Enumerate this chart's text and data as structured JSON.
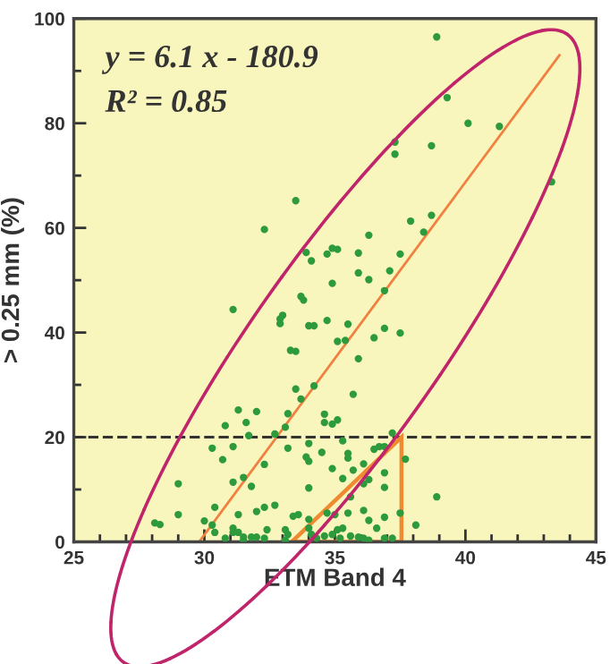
{
  "chart_data": {
    "type": "scatter",
    "xlabel": "ETM Band 4",
    "ylabel": "> 0.25 mm (%)",
    "annotations": [
      "y = 6.1 x - 180.9",
      "R² = 0.85"
    ],
    "xlim": [
      25,
      45
    ],
    "xticks": [
      25,
      30,
      35,
      40,
      45
    ],
    "ylim": [
      0,
      100
    ],
    "yticks": [
      0,
      20,
      40,
      60,
      80,
      100
    ],
    "grid": false,
    "legend": false,
    "ref_lines": [
      {
        "axis": "y",
        "value": 20,
        "label": null,
        "color": "#333333",
        "line_style": "dashed"
      }
    ],
    "series": [
      {
        "type": "scatter",
        "marker": "circle",
        "color": "#2e9a3e",
        "x": [
          38.9,
          39.3,
          40.1,
          41.3,
          37.3,
          37.3,
          38.7,
          43.3,
          33.5,
          32.3,
          37.9,
          38.7,
          38.4,
          36.3,
          33.9,
          34.7,
          34.9,
          35.1,
          35.9,
          34.1,
          37.5,
          35.9,
          37.1,
          36.3,
          34.9,
          36.9,
          33.7,
          33.8,
          31.1,
          33.0,
          32.9,
          32.9,
          34.0,
          34.2,
          34.7,
          35.5,
          36.9,
          33.3,
          33.5,
          35.1,
          35.4,
          35.9,
          36.5,
          37.5,
          33.5,
          34.2,
          33.7,
          35.7,
          31.3,
          32.0,
          33.2,
          34.6,
          34.6,
          34.9,
          35.1,
          30.8,
          31.6,
          32.7,
          33.1,
          30.3,
          31.1,
          31.7,
          33.2,
          34.0,
          35.3,
          30.7,
          32.3,
          33.9,
          34.0,
          34.5,
          35.5,
          35.5,
          36.1,
          36.5,
          36.7,
          36.9,
          37.7,
          37.2,
          29.0,
          31.1,
          31.5,
          31.8,
          34.0,
          34.9,
          35.3,
          35.7,
          36.3,
          36.9,
          36.9,
          36.1,
          35.6,
          28.1,
          28.3,
          29.0,
          30.0,
          30.4,
          31.3,
          32.0,
          32.7,
          32.3,
          33.4,
          33.6,
          34.0,
          34.7,
          35.0,
          35.5,
          36.1,
          36.3,
          36.9,
          37.5,
          38.9,
          38.1,
          30.3,
          30.4,
          31.1,
          31.1,
          31.3,
          31.5,
          31.8,
          32.0,
          32.4,
          33.1,
          33.2,
          34.0,
          34.1,
          34.6,
          34.9,
          35.1,
          35.3,
          35.6,
          35.9,
          36.1,
          36.3,
          36.6,
          36.9,
          37.2,
          34.3,
          35.2,
          32.3,
          30.8,
          31.5,
          33.1
        ],
        "values": [
          96.5,
          84.9,
          80.0,
          79.4,
          76.4,
          74.1,
          75.7,
          68.8,
          65.2,
          59.7,
          61.3,
          62.4,
          59.2,
          58.6,
          55.3,
          55.0,
          56.1,
          55.9,
          55.2,
          53.7,
          55.0,
          51.4,
          51.8,
          50.1,
          49.4,
          48.0,
          46.9,
          46.2,
          44.4,
          43.3,
          42.6,
          41.7,
          41.3,
          41.3,
          42.3,
          41.6,
          40.8,
          36.6,
          36.4,
          38.3,
          38.5,
          35.0,
          39.0,
          39.9,
          29.2,
          29.8,
          27.3,
          28.2,
          25.2,
          24.9,
          24.5,
          24.4,
          22.8,
          22.5,
          23.3,
          22.2,
          22.8,
          20.6,
          21.9,
          17.9,
          18.2,
          20.3,
          17.9,
          18.8,
          19.3,
          15.7,
          14.8,
          16.2,
          15.4,
          17.1,
          16.9,
          16.0,
          14.9,
          17.7,
          18.2,
          18.2,
          15.8,
          20.8,
          11.1,
          11.4,
          12.3,
          10.6,
          10.3,
          14.0,
          12.1,
          13.7,
          11.9,
          13.2,
          10.4,
          11.1,
          8.6,
          3.6,
          3.3,
          5.2,
          4.0,
          6.6,
          5.2,
          5.8,
          7.0,
          6.6,
          4.9,
          5.2,
          4.3,
          5.5,
          5.2,
          5.5,
          6.0,
          4.1,
          4.7,
          5.5,
          8.6,
          3.2,
          3.2,
          1.8,
          2.6,
          1.8,
          1.8,
          0.9,
          0.9,
          0.9,
          2.3,
          2.3,
          1.4,
          2.6,
          1.4,
          1.1,
          1.4,
          2.3,
          2.6,
          1.1,
          0.9,
          0.7,
          0.3,
          2.6,
          0.7,
          0.7,
          0.7,
          0.7,
          0.7,
          0.7,
          0.3,
          0.3
        ]
      },
      {
        "type": "line",
        "marker": "none",
        "color": "#f08040",
        "x": [
          29.8,
          43.6
        ],
        "values": [
          0,
          93
        ]
      }
    ]
  }
}
